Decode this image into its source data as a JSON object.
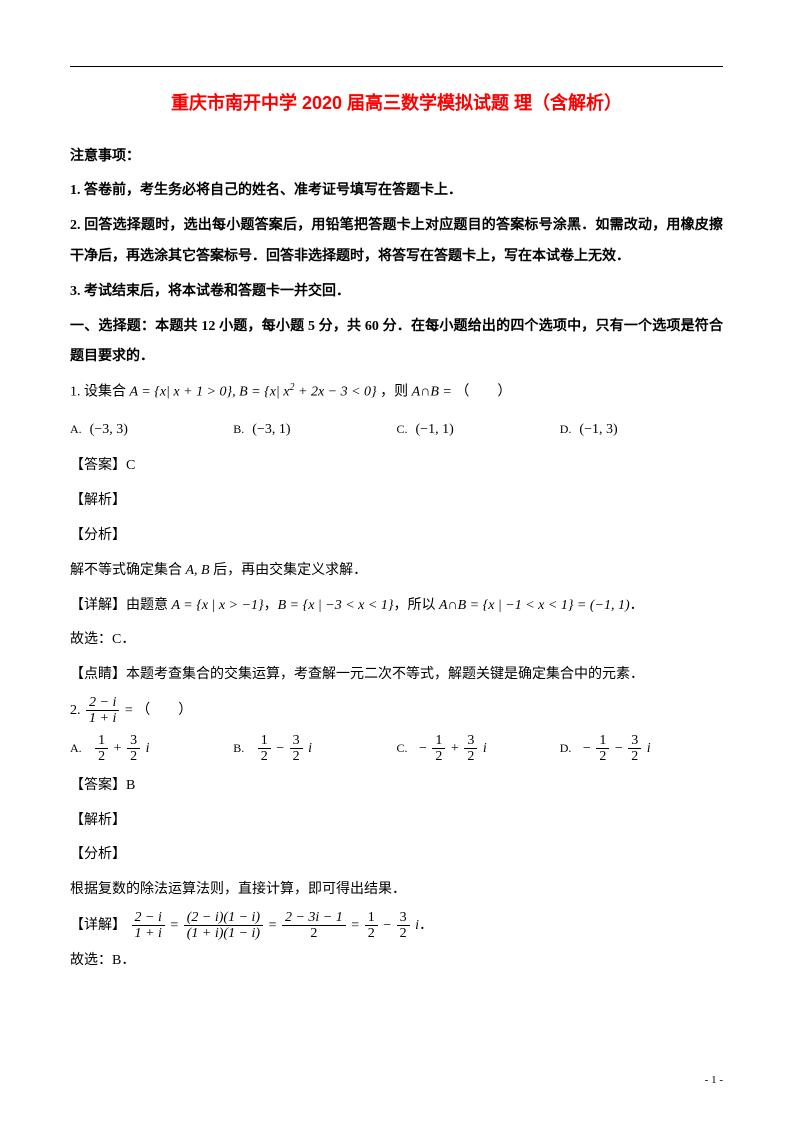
{
  "title": "重庆市南开中学 2020 届高三数学模拟试题 理（含解析）",
  "notice_heading": "注意事项：",
  "notices": [
    "1. 答卷前，考生务必将自己的姓名、准考证号填写在答题卡上．",
    "2. 回答选择题时，选出每小题答案后，用铅笔把答题卡上对应题目的答案标号涂黑．如需改动，用橡皮擦干净后，再选涂其它答案标号．回答非选择题时，将答写在答题卡上，写在本试卷上无效．",
    "3. 考试结束后，将本试卷和答题卡一并交回．"
  ],
  "section1": "一、选择题：本题共 12 小题，每小题 5 分，共 60 分．在每小题给出的四个选项中，只有一个选项是符合题目要求的．",
  "q1": {
    "stem_pre": "1. 设集合 ",
    "setA": "A = {x|  x + 1 > 0},",
    "setB": "B = {x|  x",
    "setB_exp": "2",
    "setB_tail": " + 2x − 3 < 0}",
    "stem_post": "，则 ",
    "expr": "A∩B =",
    "blank": "（　　）",
    "opts": {
      "A": "(−3, 3)",
      "B": "(−3, 1)",
      "C": "(−1, 1)",
      "D": "(−1, 3)"
    },
    "answer_label": "【答案】",
    "answer": "C",
    "jiexi": "【解析】",
    "fenxi": "【分析】",
    "fenxi_text_pre": "解不等式确定集合 ",
    "fenxi_ab": "A, B",
    "fenxi_text_post": " 后，再由交集定义求解．",
    "xiangjie": "【详解】",
    "xj_pre": "由题意 ",
    "xj_A": "A = {x | x > −1}",
    "xj_mid1": "，",
    "xj_B": "B = {x | −3 < x < 1}",
    "xj_mid2": "，所以 ",
    "xj_res": "A∩B = {x | −1 < x < 1} = (−1, 1)",
    "xj_end": "．",
    "gx": "故选：C．",
    "dianjing": "【点睛】本题考查集合的交集运算，考查解一元二次不等式，解题关键是确定集合中的元素．"
  },
  "q2": {
    "stem_num": "2. ",
    "frac_num": "2 − i",
    "frac_den": "1 + i",
    "eq": " = ",
    "blank": "（　　）",
    "opts": {
      "A": {
        "s1": "",
        "n1": "1",
        "d1": "2",
        "mid": " + ",
        "n2": "3",
        "d2": "2",
        "tail": "i"
      },
      "B": {
        "s1": "",
        "n1": "1",
        "d1": "2",
        "mid": " − ",
        "n2": "3",
        "d2": "2",
        "tail": "i"
      },
      "C": {
        "s1": "− ",
        "n1": "1",
        "d1": "2",
        "mid": " + ",
        "n2": "3",
        "d2": "2",
        "tail": "i"
      },
      "D": {
        "s1": "− ",
        "n1": "1",
        "d1": "2",
        "mid": " − ",
        "n2": "3",
        "d2": "2",
        "tail": "i"
      }
    },
    "answer_label": "【答案】",
    "answer": "B",
    "jiexi": "【解析】",
    "fenxi": "【分析】",
    "fenxi_text": "根据复数的除法运算法则，直接计算，即可得出结果．",
    "xiangjie": "【详解】",
    "step_frac1_num": "2 − i",
    "step_frac1_den": "1 + i",
    "step_frac2_num": "(2 − i)(1 − i)",
    "step_frac2_den": "(1 + i)(1 − i)",
    "step_frac3_num": "2 − 3i − 1",
    "step_frac3_den": "2",
    "step_res_n1": "1",
    "step_res_d1": "2",
    "step_res_mid": " − ",
    "step_res_n2": "3",
    "step_res_d2": "2",
    "step_res_tail": "i",
    "gx": "故选：B．"
  },
  "colors": {
    "title": "#ff0000",
    "text": "#000000",
    "bg": "#ffffff"
  },
  "page_number": "- 1 -"
}
